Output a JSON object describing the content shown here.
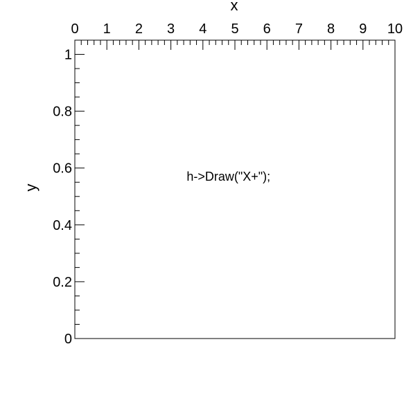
{
  "colors": {
    "background": "#ffffff",
    "frame": "#000000",
    "text": "#000000"
  },
  "chart_data": {
    "type": "scatter",
    "title": "",
    "xlabel": "x",
    "ylabel": "y",
    "xlim": [
      0,
      10
    ],
    "ylim": [
      0,
      1.05
    ],
    "x_axis_position": "top",
    "y_axis_position": "left",
    "grid": false,
    "x_ticks": [
      {
        "value": 0,
        "label": "0"
      },
      {
        "value": 1,
        "label": "1"
      },
      {
        "value": 2,
        "label": "2"
      },
      {
        "value": 3,
        "label": "3"
      },
      {
        "value": 4,
        "label": "4"
      },
      {
        "value": 5,
        "label": "5"
      },
      {
        "value": 6,
        "label": "6"
      },
      {
        "value": 7,
        "label": "7"
      },
      {
        "value": 8,
        "label": "8"
      },
      {
        "value": 9,
        "label": "9"
      },
      {
        "value": 10,
        "label": "10"
      }
    ],
    "y_ticks": [
      {
        "value": 0,
        "label": "0"
      },
      {
        "value": 0.2,
        "label": "0.2"
      },
      {
        "value": 0.4,
        "label": "0.4"
      },
      {
        "value": 0.6,
        "label": "0.6"
      },
      {
        "value": 0.8,
        "label": "0.8"
      },
      {
        "value": 1,
        "label": "1"
      }
    ],
    "x_minor_step": 0.2,
    "y_minor_step": 0.05,
    "series": [],
    "annotations": [
      {
        "text": "h->Draw(\"X+\");",
        "x": 4.8,
        "y": 0.57
      }
    ]
  }
}
